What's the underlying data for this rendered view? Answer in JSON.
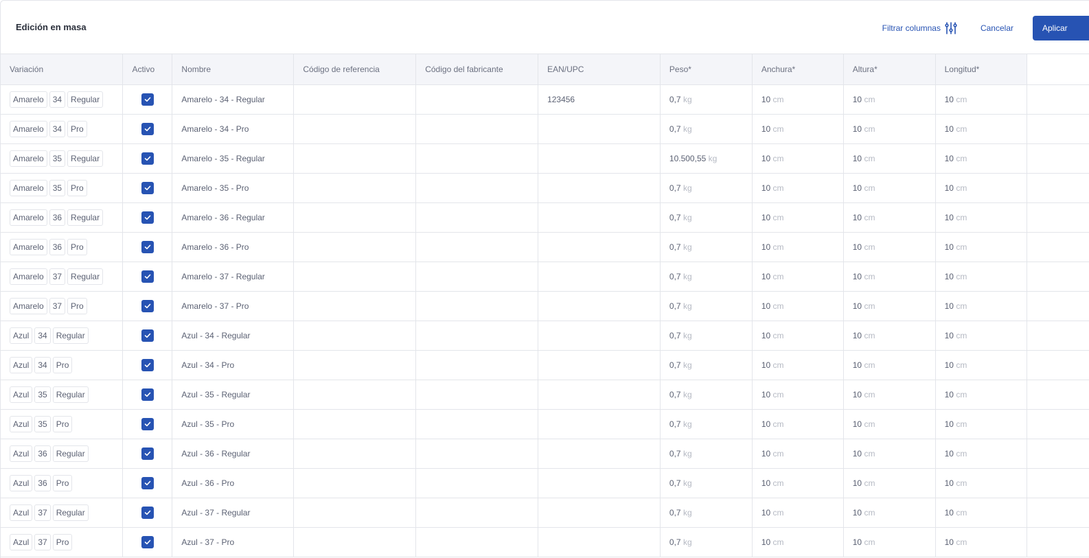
{
  "header": {
    "title": "Edición en masa",
    "filter_label": "Filtrar columnas",
    "cancel_label": "Cancelar",
    "apply_label": "Aplicar"
  },
  "colors": {
    "accent": "#2753b3"
  },
  "columns": [
    "Variación",
    "Activo",
    "Nombre",
    "Código de referencia",
    "Código del fabricante",
    "EAN/UPC",
    "Peso*",
    "Anchura*",
    "Altura*",
    "Longitud*"
  ],
  "units": {
    "weight": "kg",
    "length": "cm"
  },
  "rows": [
    {
      "chips": [
        "Amarelo",
        "34",
        "Regular"
      ],
      "active": true,
      "name": "Amarelo - 34 - Regular",
      "ref": "",
      "mfr": "",
      "ean": "123456",
      "weight": "0,7",
      "width": "10",
      "height": "10",
      "length": "10"
    },
    {
      "chips": [
        "Amarelo",
        "34",
        "Pro"
      ],
      "active": true,
      "name": "Amarelo - 34 - Pro",
      "ref": "",
      "mfr": "",
      "ean": "",
      "weight": "0,7",
      "width": "10",
      "height": "10",
      "length": "10"
    },
    {
      "chips": [
        "Amarelo",
        "35",
        "Regular"
      ],
      "active": true,
      "name": "Amarelo - 35 - Regular",
      "ref": "",
      "mfr": "",
      "ean": "",
      "weight": "10.500,55",
      "width": "10",
      "height": "10",
      "length": "10"
    },
    {
      "chips": [
        "Amarelo",
        "35",
        "Pro"
      ],
      "active": true,
      "name": "Amarelo - 35 - Pro",
      "ref": "",
      "mfr": "",
      "ean": "",
      "weight": "0,7",
      "width": "10",
      "height": "10",
      "length": "10"
    },
    {
      "chips": [
        "Amarelo",
        "36",
        "Regular"
      ],
      "active": true,
      "name": "Amarelo - 36 - Regular",
      "ref": "",
      "mfr": "",
      "ean": "",
      "weight": "0,7",
      "width": "10",
      "height": "10",
      "length": "10"
    },
    {
      "chips": [
        "Amarelo",
        "36",
        "Pro"
      ],
      "active": true,
      "name": "Amarelo - 36 - Pro",
      "ref": "",
      "mfr": "",
      "ean": "",
      "weight": "0,7",
      "width": "10",
      "height": "10",
      "length": "10"
    },
    {
      "chips": [
        "Amarelo",
        "37",
        "Regular"
      ],
      "active": true,
      "name": "Amarelo - 37 - Regular",
      "ref": "",
      "mfr": "",
      "ean": "",
      "weight": "0,7",
      "width": "10",
      "height": "10",
      "length": "10"
    },
    {
      "chips": [
        "Amarelo",
        "37",
        "Pro"
      ],
      "active": true,
      "name": "Amarelo - 37 - Pro",
      "ref": "",
      "mfr": "",
      "ean": "",
      "weight": "0,7",
      "width": "10",
      "height": "10",
      "length": "10"
    },
    {
      "chips": [
        "Azul",
        "34",
        "Regular"
      ],
      "active": true,
      "name": "Azul - 34 - Regular",
      "ref": "",
      "mfr": "",
      "ean": "",
      "weight": "0,7",
      "width": "10",
      "height": "10",
      "length": "10"
    },
    {
      "chips": [
        "Azul",
        "34",
        "Pro"
      ],
      "active": true,
      "name": "Azul - 34 - Pro",
      "ref": "",
      "mfr": "",
      "ean": "",
      "weight": "0,7",
      "width": "10",
      "height": "10",
      "length": "10"
    },
    {
      "chips": [
        "Azul",
        "35",
        "Regular"
      ],
      "active": true,
      "name": "Azul - 35 - Regular",
      "ref": "",
      "mfr": "",
      "ean": "",
      "weight": "0,7",
      "width": "10",
      "height": "10",
      "length": "10"
    },
    {
      "chips": [
        "Azul",
        "35",
        "Pro"
      ],
      "active": true,
      "name": "Azul - 35 - Pro",
      "ref": "",
      "mfr": "",
      "ean": "",
      "weight": "0,7",
      "width": "10",
      "height": "10",
      "length": "10"
    },
    {
      "chips": [
        "Azul",
        "36",
        "Regular"
      ],
      "active": true,
      "name": "Azul - 36 - Regular",
      "ref": "",
      "mfr": "",
      "ean": "",
      "weight": "0,7",
      "width": "10",
      "height": "10",
      "length": "10"
    },
    {
      "chips": [
        "Azul",
        "36",
        "Pro"
      ],
      "active": true,
      "name": "Azul - 36 - Pro",
      "ref": "",
      "mfr": "",
      "ean": "",
      "weight": "0,7",
      "width": "10",
      "height": "10",
      "length": "10"
    },
    {
      "chips": [
        "Azul",
        "37",
        "Regular"
      ],
      "active": true,
      "name": "Azul - 37 - Regular",
      "ref": "",
      "mfr": "",
      "ean": "",
      "weight": "0,7",
      "width": "10",
      "height": "10",
      "length": "10"
    },
    {
      "chips": [
        "Azul",
        "37",
        "Pro"
      ],
      "active": true,
      "name": "Azul - 37 - Pro",
      "ref": "",
      "mfr": "",
      "ean": "",
      "weight": "0,7",
      "width": "10",
      "height": "10",
      "length": "10"
    }
  ]
}
